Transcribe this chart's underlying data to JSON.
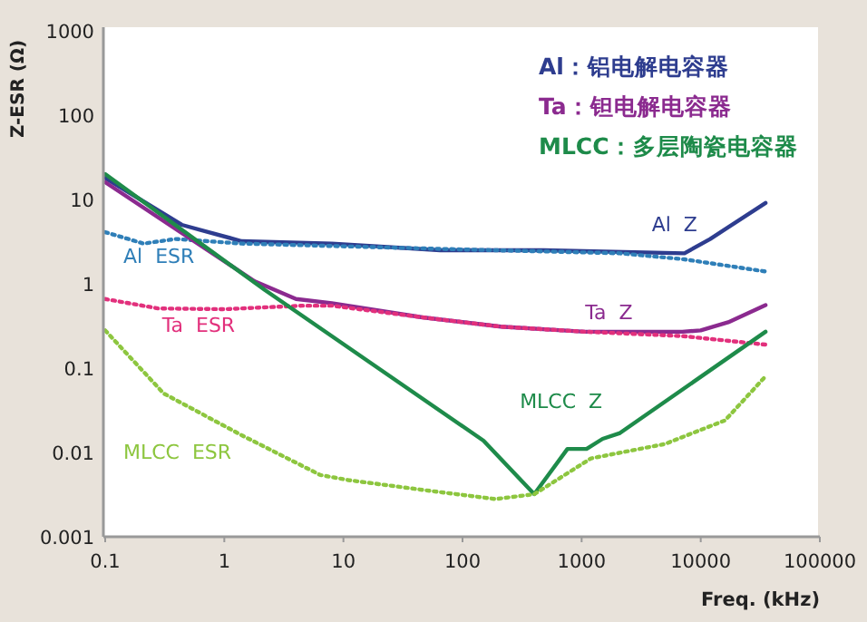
{
  "chart_data": {
    "type": "line",
    "xlabel": "Freq. (kHz)",
    "ylabel": "Z-ESR (Ω)",
    "log": "xy",
    "xlim": [
      0.1,
      100000
    ],
    "xticks": [
      0.1,
      1,
      10,
      100,
      1000,
      10000,
      100000
    ],
    "ylim": [
      0.001,
      1000
    ],
    "yticks": [
      0.001,
      0.01,
      0.1,
      1,
      10,
      100,
      1000
    ],
    "grid": false,
    "annotations": [
      "Al：铝电解电容器",
      "Ta：钽电解电容器",
      "MLCC：多层陶瓷电容器"
    ],
    "series": [
      {
        "name": "Al Z",
        "color": "#2e3d8f",
        "line_style": "solid",
        "x": [
          0.1,
          0.44,
          1.4,
          8,
          65,
          480,
          7300,
          12000,
          35000
        ],
        "values": [
          18,
          5.0,
          3.2,
          3.0,
          2.5,
          2.5,
          2.3,
          3.4,
          9.1
        ]
      },
      {
        "name": "Al ESR",
        "color": "#2f7fb8",
        "line_style": "dotted",
        "x": [
          0.1,
          0.21,
          0.39,
          1.4,
          60,
          2100,
          7300,
          35000
        ],
        "values": [
          4.1,
          3.0,
          3.4,
          3.0,
          2.6,
          2.3,
          1.95,
          1.4
        ]
      },
      {
        "name": "Ta Z",
        "color": "#8b2a8f",
        "line_style": "solid",
        "x": [
          0.1,
          1.8,
          4,
          8,
          46,
          210,
          1070,
          7000,
          10000,
          17000,
          35000
        ],
        "values": [
          16,
          1.07,
          0.66,
          0.59,
          0.4,
          0.31,
          0.27,
          0.27,
          0.28,
          0.35,
          0.56
        ]
      },
      {
        "name": "Ta ESR",
        "color": "#e2307c",
        "line_style": "dotted",
        "x": [
          0.1,
          0.28,
          1,
          4.5,
          8,
          46,
          210,
          1070,
          7000,
          35000
        ],
        "values": [
          0.66,
          0.51,
          0.5,
          0.55,
          0.55,
          0.4,
          0.31,
          0.27,
          0.24,
          0.19
        ]
      },
      {
        "name": "MLCC Z",
        "color": "#1e8b4a",
        "line_style": "solid",
        "x": [
          0.1,
          2.2,
          150,
          400,
          760,
          1100,
          1500,
          2100,
          35000
        ],
        "values": [
          20,
          0.84,
          0.0138,
          0.0032,
          0.011,
          0.011,
          0.0145,
          0.017,
          0.27
        ]
      },
      {
        "name": "MLCC ESR",
        "color": "#8dc63f",
        "line_style": "dotted",
        "x": [
          0.1,
          0.31,
          1.4,
          6.4,
          11,
          46,
          190,
          400,
          1200,
          5000,
          16000,
          35000
        ],
        "values": [
          0.28,
          0.05,
          0.016,
          0.0054,
          0.0047,
          0.0036,
          0.0028,
          0.0032,
          0.0085,
          0.0126,
          0.024,
          0.08
        ]
      }
    ]
  }
}
